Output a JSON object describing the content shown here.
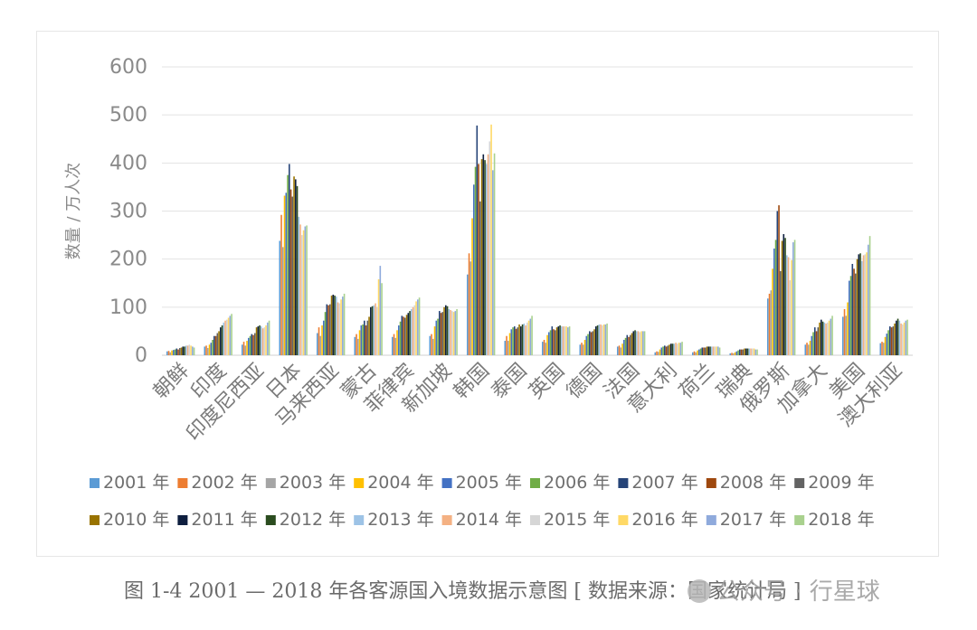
{
  "chart_data": {
    "type": "bar",
    "title": "",
    "ylabel": "数量 / 万人次",
    "xlabel": "",
    "ylim": [
      0,
      600
    ],
    "yticks": [
      0,
      100,
      200,
      300,
      400,
      500,
      600
    ],
    "grid": true,
    "legend_position": "bottom",
    "categories": [
      "朝鲜",
      "印度",
      "印度尼西亚",
      "日本",
      "马来西亚",
      "蒙古",
      "菲律宾",
      "新加坡",
      "韩国",
      "泰国",
      "英国",
      "德国",
      "法国",
      "意大利",
      "荷兰",
      "瑞典",
      "俄罗斯",
      "加拿大",
      "美国",
      "澳大利亚"
    ],
    "series": [
      {
        "name": "2001 年",
        "color": "#5b9bd5",
        "values": [
          8,
          18,
          22,
          238,
          46,
          38,
          38,
          40,
          168,
          30,
          28,
          22,
          18,
          6,
          6,
          4,
          118,
          22,
          80,
          25
        ]
      },
      {
        "name": "2002 年",
        "color": "#ed7d31",
        "values": [
          9,
          20,
          28,
          292,
          58,
          44,
          44,
          44,
          212,
          40,
          32,
          26,
          20,
          8,
          8,
          5,
          128,
          26,
          96,
          28
        ]
      },
      {
        "name": "2003 年",
        "color": "#a5a5a5",
        "values": [
          6,
          15,
          20,
          225,
          40,
          34,
          36,
          34,
          195,
          30,
          26,
          22,
          16,
          7,
          6,
          4,
          135,
          22,
          82,
          26
        ]
      },
      {
        "name": "2004 年",
        "color": "#ffc000",
        "values": [
          10,
          22,
          30,
          332,
          62,
          52,
          52,
          60,
          285,
          46,
          42,
          32,
          24,
          12,
          10,
          6,
          180,
          30,
          110,
          38
        ]
      },
      {
        "name": "2005 年",
        "color": "#4472c4",
        "values": [
          11,
          26,
          36,
          338,
          72,
          62,
          62,
          72,
          355,
          54,
          48,
          40,
          32,
          16,
          12,
          8,
          222,
          40,
          155,
          45
        ]
      },
      {
        "name": "2006 年",
        "color": "#70ad47",
        "values": [
          12,
          32,
          40,
          375,
          90,
          64,
          70,
          76,
          392,
          58,
          52,
          44,
          36,
          18,
          14,
          10,
          240,
          48,
          165,
          52
        ]
      },
      {
        "name": "2007 年",
        "color": "#264478",
        "values": [
          14,
          40,
          44,
          398,
          106,
          72,
          82,
          92,
          478,
          60,
          60,
          50,
          42,
          20,
          16,
          12,
          300,
          58,
          190,
          60
        ]
      },
      {
        "name": "2008 年",
        "color": "#9e480e",
        "values": [
          12,
          40,
          42,
          345,
          104,
          62,
          80,
          88,
          398,
          55,
          54,
          48,
          38,
          18,
          16,
          12,
          312,
          50,
          180,
          58
        ]
      },
      {
        "name": "2009 年",
        "color": "#636363",
        "values": [
          15,
          46,
          46,
          330,
          106,
          72,
          78,
          90,
          320,
          58,
          52,
          50,
          42,
          20,
          16,
          12,
          175,
          58,
          170,
          60
        ]
      },
      {
        "name": "2010 年",
        "color": "#997300",
        "values": [
          16,
          50,
          58,
          372,
          124,
          80,
          84,
          100,
          408,
          64,
          58,
          54,
          46,
          22,
          18,
          14,
          238,
          68,
          200,
          66
        ]
      },
      {
        "name": "2011 年",
        "color": "#0e1f3f",
        "values": [
          18,
          58,
          60,
          366,
          126,
          100,
          88,
          104,
          418,
          60,
          60,
          60,
          50,
          24,
          18,
          14,
          252,
          74,
          210,
          72
        ]
      },
      {
        "name": "2012 年",
        "color": "#2b4c1f",
        "values": [
          18,
          62,
          62,
          352,
          124,
          102,
          92,
          102,
          406,
          64,
          62,
          62,
          52,
          24,
          18,
          14,
          244,
          70,
          212,
          76
        ]
      },
      {
        "name": "2013 年",
        "color": "#9dc3e6",
        "values": [
          20,
          68,
          60,
          288,
          122,
          104,
          96,
          96,
          398,
          66,
          60,
          64,
          50,
          24,
          18,
          14,
          208,
          68,
          196,
          72
        ]
      },
      {
        "name": "2014 年",
        "color": "#f4b183",
        "values": [
          20,
          72,
          56,
          272,
          110,
          108,
          100,
          94,
          418,
          62,
          60,
          64,
          50,
          26,
          18,
          14,
          204,
          66,
          208,
          66
        ]
      },
      {
        "name": "2015 年",
        "color": "#d6d6d6",
        "values": [
          22,
          74,
          58,
          250,
          108,
          100,
          104,
          92,
          445,
          68,
          60,
          62,
          48,
          24,
          18,
          14,
          156,
          68,
          210,
          64
        ]
      },
      {
        "name": "2016 年",
        "color": "#ffd966",
        "values": [
          20,
          78,
          62,
          260,
          116,
          158,
          112,
          90,
          480,
          72,
          60,
          64,
          50,
          26,
          18,
          14,
          198,
          72,
          214,
          68
        ]
      },
      {
        "name": "2017 年",
        "color": "#8faadc",
        "values": [
          18,
          82,
          68,
          268,
          122,
          186,
          116,
          92,
          385,
          76,
          58,
          64,
          50,
          26,
          18,
          12,
          235,
          76,
          230,
          72
        ]
      },
      {
        "name": "2018 年",
        "color": "#a9d18e",
        "values": [
          16,
          86,
          72,
          270,
          128,
          150,
          120,
          96,
          420,
          82,
          60,
          66,
          50,
          28,
          16,
          12,
          240,
          82,
          248,
          74
        ]
      }
    ]
  },
  "caption": "图 1-4  2001 — 2018 年各客源国入境数据示意图 [ 数据来源：国家统计局 ]",
  "watermark": "公众号 · 行星球"
}
